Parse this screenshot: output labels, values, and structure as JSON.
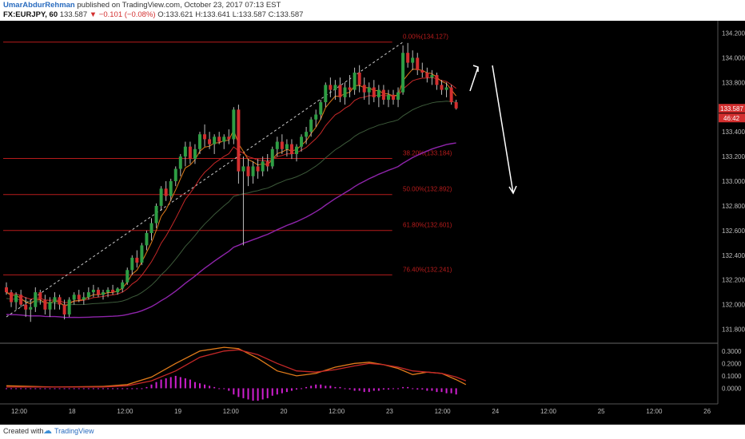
{
  "header": {
    "author": "UmarAbdurRehman",
    "published": "published on TradingView.com, October 23, 2017 07:13 EST",
    "symbol": "FX:EURJPY, 60",
    "last": "133.587",
    "change": "−0.101 (−0.08%)",
    "ohlc": "O:133.621 H:133.641 L:133.587 C:133.587"
  },
  "footer": {
    "created_with": "Created with",
    "brand": "TradingView"
  },
  "colors": {
    "background": "#000000",
    "up": "#2e9e44",
    "down": "#d32f2f",
    "fib": "#b71c1c",
    "ma_orange": "#e07b1a",
    "ma_red": "#c62828",
    "ma_green": "#3d5a3a",
    "ma_purple": "#8e24aa",
    "hist": "#d01fd0"
  },
  "chart_data": [
    {
      "type": "candlestick",
      "symbol": "FX:EURJPY",
      "interval": "60",
      "ylim": [
        131.7,
        134.3
      ],
      "y_ticks": [
        "134.200",
        "134.000",
        "133.800",
        "133.600",
        "133.400",
        "133.200",
        "133.000",
        "132.800",
        "132.600",
        "132.400",
        "132.200",
        "132.000",
        "131.800"
      ],
      "x_ticks": [
        "12:00",
        "18",
        "12:00",
        "19",
        "12:00",
        "20",
        "12:00",
        "23",
        "12:00",
        "24",
        "12:00",
        "25",
        "12:00",
        "26"
      ],
      "last_price_label": "133.587",
      "countdown_label": "46:42",
      "fib_levels": [
        {
          "label": "0.00%(134.127)",
          "price": 134.127
        },
        {
          "label": "38.20%(133.184)",
          "price": 133.184
        },
        {
          "label": "50.00%(132.892)",
          "price": 132.892
        },
        {
          "label": "61.80%(132.601)",
          "price": 132.601
        },
        {
          "label": "76.40%(132.241)",
          "price": 132.241
        }
      ],
      "fib_anchor_low": 131.9,
      "candles": [
        [
          132.14,
          132.18,
          132.08,
          132.1
        ],
        [
          132.1,
          132.12,
          131.98,
          132.02
        ],
        [
          132.02,
          132.1,
          131.96,
          132.08
        ],
        [
          132.08,
          132.12,
          131.98,
          132.0
        ],
        [
          132.0,
          132.06,
          131.9,
          131.96
        ],
        [
          131.96,
          132.04,
          131.86,
          131.98
        ],
        [
          131.98,
          132.14,
          131.94,
          132.1
        ],
        [
          132.1,
          132.12,
          132.0,
          132.04
        ],
        [
          132.04,
          132.08,
          131.92,
          131.96
        ],
        [
          131.96,
          132.06,
          131.9,
          132.02
        ],
        [
          132.02,
          132.1,
          131.96,
          132.06
        ],
        [
          132.06,
          132.08,
          131.96,
          132.0
        ],
        [
          132.0,
          132.04,
          131.88,
          131.92
        ],
        [
          131.92,
          132.06,
          131.9,
          132.04
        ],
        [
          132.04,
          132.1,
          132.0,
          132.08
        ],
        [
          132.08,
          132.12,
          132.02,
          132.04
        ],
        [
          132.04,
          132.1,
          132.0,
          132.06
        ],
        [
          132.06,
          132.14,
          132.04,
          132.1
        ],
        [
          132.1,
          132.16,
          132.06,
          132.12
        ],
        [
          132.12,
          132.14,
          132.06,
          132.08
        ],
        [
          132.08,
          132.12,
          132.04,
          132.1
        ],
        [
          132.1,
          132.14,
          132.06,
          132.12
        ],
        [
          132.12,
          132.16,
          132.08,
          132.1
        ],
        [
          132.1,
          132.14,
          132.08,
          132.13
        ],
        [
          132.13,
          132.2,
          132.1,
          132.18
        ],
        [
          132.18,
          132.3,
          132.16,
          132.28
        ],
        [
          132.28,
          132.4,
          132.24,
          132.38
        ],
        [
          132.38,
          132.44,
          132.3,
          132.34
        ],
        [
          132.34,
          132.5,
          132.32,
          132.48
        ],
        [
          132.48,
          132.6,
          132.44,
          132.58
        ],
        [
          132.58,
          132.7,
          132.52,
          132.66
        ],
        [
          132.66,
          132.82,
          132.62,
          132.8
        ],
        [
          132.8,
          132.96,
          132.76,
          132.94
        ],
        [
          132.94,
          133.0,
          132.84,
          132.88
        ],
        [
          132.88,
          133.02,
          132.84,
          133.0
        ],
        [
          133.0,
          133.12,
          132.96,
          133.1
        ],
        [
          133.1,
          133.22,
          133.04,
          133.2
        ],
        [
          133.2,
          133.32,
          133.12,
          133.28
        ],
        [
          133.28,
          133.32,
          133.14,
          133.18
        ],
        [
          133.18,
          133.3,
          133.14,
          133.26
        ],
        [
          133.26,
          133.4,
          133.22,
          133.38
        ],
        [
          133.38,
          133.46,
          133.28,
          133.34
        ],
        [
          133.34,
          133.4,
          133.26,
          133.3
        ],
        [
          133.3,
          133.38,
          133.22,
          133.36
        ],
        [
          133.36,
          133.4,
          133.3,
          133.32
        ],
        [
          133.32,
          133.38,
          133.26,
          133.36
        ],
        [
          133.36,
          133.42,
          133.3,
          133.34
        ],
        [
          133.34,
          133.6,
          133.3,
          133.58
        ],
        [
          133.58,
          133.62,
          132.98,
          133.08
        ],
        [
          133.08,
          133.2,
          132.48,
          133.12
        ],
        [
          133.12,
          133.18,
          132.96,
          133.04
        ],
        [
          133.04,
          133.16,
          132.98,
          133.12
        ],
        [
          133.12,
          133.18,
          133.02,
          133.08
        ],
        [
          133.08,
          133.2,
          133.04,
          133.16
        ],
        [
          133.16,
          133.22,
          133.08,
          133.12
        ],
        [
          133.12,
          133.28,
          133.1,
          133.26
        ],
        [
          133.26,
          133.36,
          133.2,
          133.32
        ],
        [
          133.32,
          133.38,
          133.22,
          133.26
        ],
        [
          133.26,
          133.34,
          133.2,
          133.3
        ],
        [
          133.3,
          133.34,
          133.18,
          133.22
        ],
        [
          133.22,
          133.3,
          133.16,
          133.28
        ],
        [
          133.28,
          133.38,
          133.24,
          133.36
        ],
        [
          133.36,
          133.44,
          133.3,
          133.4
        ],
        [
          133.4,
          133.52,
          133.36,
          133.5
        ],
        [
          133.5,
          133.58,
          133.44,
          133.54
        ],
        [
          133.54,
          133.66,
          133.5,
          133.64
        ],
        [
          133.64,
          133.8,
          133.6,
          133.78
        ],
        [
          133.78,
          133.84,
          133.68,
          133.74
        ],
        [
          133.74,
          133.82,
          133.66,
          133.78
        ],
        [
          133.78,
          133.84,
          133.64,
          133.68
        ],
        [
          133.68,
          133.8,
          133.62,
          133.76
        ],
        [
          133.76,
          133.86,
          133.68,
          133.74
        ],
        [
          133.74,
          133.92,
          133.7,
          133.88
        ],
        [
          133.88,
          133.94,
          133.72,
          133.78
        ],
        [
          133.78,
          133.84,
          133.66,
          133.72
        ],
        [
          133.72,
          133.8,
          133.62,
          133.76
        ],
        [
          133.76,
          133.82,
          133.64,
          133.68
        ],
        [
          133.68,
          133.78,
          133.6,
          133.74
        ],
        [
          133.74,
          133.78,
          133.62,
          133.66
        ],
        [
          133.66,
          133.74,
          133.6,
          133.7
        ],
        [
          133.7,
          133.74,
          133.62,
          133.66
        ],
        [
          133.66,
          133.76,
          133.6,
          133.72
        ],
        [
          133.72,
          134.1,
          133.7,
          134.04
        ],
        [
          134.04,
          134.12,
          133.92,
          133.96
        ],
        [
          133.96,
          134.06,
          133.9,
          134.0
        ],
        [
          134.0,
          134.04,
          133.86,
          133.9
        ],
        [
          133.9,
          133.96,
          133.84,
          133.88
        ],
        [
          133.88,
          133.92,
          133.8,
          133.84
        ],
        [
          133.84,
          133.9,
          133.78,
          133.86
        ],
        [
          133.86,
          133.88,
          133.74,
          133.78
        ],
        [
          133.78,
          133.82,
          133.7,
          133.74
        ],
        [
          133.74,
          133.8,
          133.68,
          133.76
        ],
        [
          133.76,
          133.78,
          133.62,
          133.64
        ],
        [
          133.64,
          133.66,
          133.58,
          133.59
        ]
      ]
    },
    {
      "type": "line",
      "panel": "oscillator",
      "ylim": [
        -0.1,
        0.35
      ],
      "y_ticks": [
        "0.3000",
        "0.2000",
        "0.1000",
        "0.0000"
      ],
      "series": [
        {
          "role": "fast",
          "points": [
            [
              0,
              0.02
            ],
            [
              10,
              0.01
            ],
            [
              20,
              0.015
            ],
            [
              25,
              0.03
            ],
            [
              30,
              0.09
            ],
            [
              35,
              0.2
            ],
            [
              40,
              0.3
            ],
            [
              45,
              0.33
            ],
            [
              48,
              0.32
            ],
            [
              52,
              0.24
            ],
            [
              56,
              0.14
            ],
            [
              60,
              0.1
            ],
            [
              64,
              0.12
            ],
            [
              68,
              0.17
            ],
            [
              72,
              0.2
            ],
            [
              75,
              0.21
            ],
            [
              78,
              0.19
            ],
            [
              81,
              0.16
            ],
            [
              84,
              0.11
            ],
            [
              87,
              0.13
            ],
            [
              90,
              0.12
            ],
            [
              93,
              0.07
            ],
            [
              95,
              0.03
            ]
          ]
        },
        {
          "role": "slow",
          "points": [
            [
              0,
              0.01
            ],
            [
              10,
              0.01
            ],
            [
              20,
              0.01
            ],
            [
              25,
              0.02
            ],
            [
              30,
              0.06
            ],
            [
              35,
              0.14
            ],
            [
              40,
              0.25
            ],
            [
              45,
              0.3
            ],
            [
              48,
              0.31
            ],
            [
              52,
              0.27
            ],
            [
              56,
              0.2
            ],
            [
              60,
              0.14
            ],
            [
              64,
              0.13
            ],
            [
              68,
              0.15
            ],
            [
              72,
              0.18
            ],
            [
              75,
              0.2
            ],
            [
              78,
              0.19
            ],
            [
              81,
              0.17
            ],
            [
              84,
              0.14
            ],
            [
              87,
              0.13
            ],
            [
              90,
              0.12
            ],
            [
              93,
              0.09
            ],
            [
              95,
              0.06
            ]
          ]
        }
      ],
      "histogram": [
        0,
        0,
        0,
        0,
        0,
        0,
        0,
        0,
        0,
        0,
        0,
        0,
        0,
        0,
        0,
        0,
        0,
        0,
        0,
        0,
        0,
        0,
        0,
        0,
        0,
        0,
        0,
        0,
        0,
        0.01,
        0.03,
        0.05,
        0.07,
        0.08,
        0.09,
        0.1,
        0.09,
        0.08,
        0.07,
        0.05,
        0.04,
        0.03,
        0.02,
        0.01,
        0,
        0,
        -0.02,
        -0.05,
        -0.07,
        -0.08,
        -0.09,
        -0.1,
        -0.1,
        -0.09,
        -0.08,
        -0.06,
        -0.05,
        -0.04,
        -0.03,
        -0.02,
        -0.01,
        0,
        0.01,
        0.02,
        0.03,
        0.03,
        0.02,
        0.02,
        0.01,
        0.01,
        0,
        -0.01,
        -0.02,
        -0.02,
        -0.03,
        -0.03,
        -0.02,
        -0.02,
        -0.01,
        -0.01,
        0,
        0,
        0.01,
        0.01,
        0,
        -0.01,
        -0.01,
        -0.02,
        -0.02,
        -0.03,
        -0.03,
        -0.04,
        -0.04,
        -0.05
      ]
    }
  ]
}
